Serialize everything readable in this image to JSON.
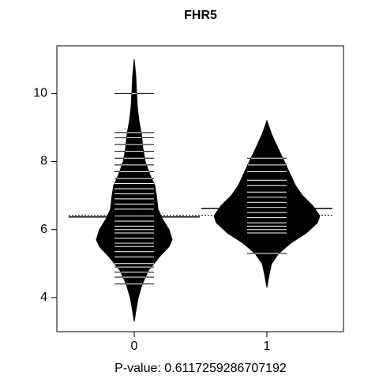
{
  "chart_data": {
    "type": "beanplot",
    "title": "FHR5",
    "xlabel": "P-value: 0.6117259286707192",
    "categories": [
      "0",
      "1"
    ],
    "ylim": [
      3.0,
      11.4
    ],
    "yticks": [
      4,
      6,
      8,
      10
    ],
    "overall_mean": 6.42,
    "color": "#000000",
    "beanline_color": "#ffffff",
    "groups": [
      {
        "mean": 6.37,
        "density": {
          "y": [
            3.3,
            3.6,
            4.0,
            4.4,
            4.8,
            5.2,
            5.5,
            5.7,
            6.0,
            6.3,
            6.6,
            7.0,
            7.3,
            7.6,
            8.0,
            8.4,
            8.8,
            9.2,
            9.6,
            10.0,
            10.5,
            11.0
          ],
          "half_width": [
            0,
            0.012,
            0.03,
            0.06,
            0.107,
            0.19,
            0.262,
            0.286,
            0.262,
            0.214,
            0.179,
            0.167,
            0.155,
            0.119,
            0.083,
            0.065,
            0.054,
            0.036,
            0.024,
            0.018,
            0.012,
            0
          ]
        },
        "observations": [
          4.4,
          4.6,
          4.75,
          4.9,
          5.0,
          5.2,
          5.35,
          5.5,
          5.6,
          5.75,
          5.9,
          6.0,
          6.1,
          6.25,
          6.4,
          6.6,
          6.75,
          6.9,
          7.05,
          7.2,
          7.35,
          7.5,
          7.7,
          7.9,
          8.1,
          8.3,
          8.5,
          8.7,
          8.85,
          10.0
        ]
      },
      {
        "mean": 6.62,
        "density": {
          "y": [
            4.3,
            4.7,
            5.0,
            5.3,
            5.6,
            5.9,
            6.2,
            6.4,
            6.7,
            7.0,
            7.3,
            7.6,
            8.0,
            8.4,
            8.8,
            9.2
          ],
          "half_width": [
            0,
            0.018,
            0.036,
            0.089,
            0.179,
            0.298,
            0.381,
            0.399,
            0.345,
            0.268,
            0.214,
            0.179,
            0.131,
            0.083,
            0.036,
            0
          ]
        },
        "observations": [
          5.3,
          5.9,
          6.0,
          6.1,
          6.2,
          6.35,
          6.5,
          6.65,
          6.8,
          6.95,
          7.1,
          7.3,
          7.45,
          7.7,
          7.9,
          8.1
        ]
      }
    ]
  }
}
